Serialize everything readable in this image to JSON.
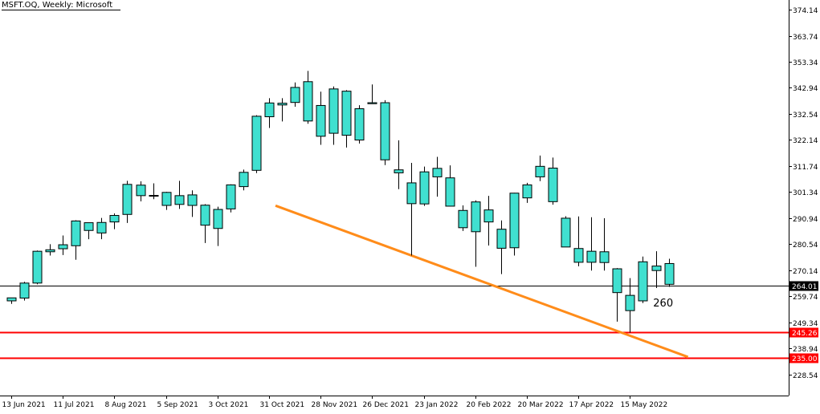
{
  "title": "MSFT.OQ, Weekly:  Microsoft",
  "colors": {
    "background": "#ffffff",
    "candle_fill": "#40e0d0",
    "candle_border": "#000000",
    "price_line": "#000000",
    "level_line": "#ff0000",
    "trend_line": "#ff8c1a",
    "axis": "#000000"
  },
  "chart_data": {
    "type": "candlestick",
    "symbol": "MSFT.OQ",
    "timeframe": "Weekly",
    "instrument": "Microsoft",
    "y_ticks": [
      "374.14",
      "363.74",
      "353.34",
      "342.94",
      "332.54",
      "322.14",
      "311.74",
      "301.34",
      "290.94",
      "280.54",
      "270.14",
      "259.74",
      "249.34",
      "238.94",
      "228.54"
    ],
    "ylim": [
      220.1,
      378.0
    ],
    "x_labels": [
      {
        "index": 0,
        "text": "13 Jun 2021"
      },
      {
        "index": 4,
        "text": "11 Jul 2021"
      },
      {
        "index": 8,
        "text": "8 Aug 2021"
      },
      {
        "index": 12,
        "text": "5 Sep 2021"
      },
      {
        "index": 16,
        "text": "3 Oct 2021"
      },
      {
        "index": 20,
        "text": "31 Oct 2021"
      },
      {
        "index": 24,
        "text": "28 Nov 2021"
      },
      {
        "index": 28,
        "text": "26 Dec 2021"
      },
      {
        "index": 32,
        "text": "23 Jan 2022"
      },
      {
        "index": 36,
        "text": "20 Feb 2022"
      },
      {
        "index": 40,
        "text": "20 Mar 2022"
      },
      {
        "index": 44,
        "text": "17 Apr 2022"
      },
      {
        "index": 48,
        "text": "15 May 2022"
      }
    ],
    "candles": [
      {
        "o": 257.9,
        "h": 259.0,
        "l": 256.7,
        "c": 259.1
      },
      {
        "o": 259.0,
        "h": 265.5,
        "l": 258.0,
        "c": 265.0
      },
      {
        "o": 265.0,
        "h": 278.0,
        "l": 264.5,
        "c": 277.7
      },
      {
        "o": 277.5,
        "h": 280.5,
        "l": 276.0,
        "c": 278.3
      },
      {
        "o": 278.7,
        "h": 284.0,
        "l": 276.2,
        "c": 280.3
      },
      {
        "o": 279.9,
        "h": 290.1,
        "l": 274.3,
        "c": 289.8
      },
      {
        "o": 286.0,
        "h": 289.0,
        "l": 282.5,
        "c": 289.1
      },
      {
        "o": 285.0,
        "h": 291.0,
        "l": 282.5,
        "c": 289.2
      },
      {
        "o": 289.4,
        "h": 292.8,
        "l": 286.5,
        "c": 292.0
      },
      {
        "o": 292.4,
        "h": 305.8,
        "l": 289.0,
        "c": 304.4
      },
      {
        "o": 299.9,
        "h": 305.6,
        "l": 297.6,
        "c": 304.1
      },
      {
        "o": 300.0,
        "h": 304.8,
        "l": 298.5,
        "c": 300.0
      },
      {
        "o": 301.2,
        "h": 301.4,
        "l": 294.2,
        "c": 296.0
      },
      {
        "o": 296.4,
        "h": 305.8,
        "l": 294.6,
        "c": 299.9
      },
      {
        "o": 300.2,
        "h": 302.0,
        "l": 291.4,
        "c": 296.0
      },
      {
        "o": 296.1,
        "h": 296.5,
        "l": 281.0,
        "c": 288.1
      },
      {
        "o": 286.8,
        "h": 295.5,
        "l": 279.8,
        "c": 294.4
      },
      {
        "o": 294.6,
        "h": 304.4,
        "l": 293.2,
        "c": 304.2
      },
      {
        "o": 303.5,
        "h": 310.3,
        "l": 302.0,
        "c": 309.2
      },
      {
        "o": 310.0,
        "h": 332.0,
        "l": 308.9,
        "c": 331.6
      },
      {
        "o": 331.4,
        "h": 338.8,
        "l": 326.9,
        "c": 336.9
      },
      {
        "o": 336.1,
        "h": 338.8,
        "l": 329.5,
        "c": 336.8
      },
      {
        "o": 337.1,
        "h": 345.1,
        "l": 335.4,
        "c": 343.1
      },
      {
        "o": 345.4,
        "h": 349.7,
        "l": 328.6,
        "c": 329.7
      },
      {
        "o": 335.9,
        "h": 341.4,
        "l": 320.2,
        "c": 323.6
      },
      {
        "o": 324.8,
        "h": 343.5,
        "l": 320.2,
        "c": 342.5
      },
      {
        "o": 341.6,
        "h": 342.0,
        "l": 319.1,
        "c": 324.0
      },
      {
        "o": 334.6,
        "h": 336.0,
        "l": 320.7,
        "c": 322.1
      },
      {
        "o": 336.6,
        "h": 344.3,
        "l": 336.5,
        "c": 337.0
      },
      {
        "o": 337.0,
        "h": 338.0,
        "l": 312.1,
        "c": 314.2
      },
      {
        "o": 310.2,
        "h": 322.0,
        "l": 302.5,
        "c": 309.0
      },
      {
        "o": 305.0,
        "h": 313.0,
        "l": 276.0,
        "c": 296.7
      },
      {
        "o": 296.6,
        "h": 311.5,
        "l": 295.8,
        "c": 309.4
      },
      {
        "o": 310.8,
        "h": 315.4,
        "l": 299.5,
        "c": 307.4
      },
      {
        "o": 307.0,
        "h": 312.0,
        "l": 295.6,
        "c": 295.7
      },
      {
        "o": 294.0,
        "h": 296.0,
        "l": 285.8,
        "c": 287.1
      },
      {
        "o": 297.4,
        "h": 298.0,
        "l": 271.5,
        "c": 285.5
      },
      {
        "o": 294.2,
        "h": 299.8,
        "l": 280.0,
        "c": 289.4
      },
      {
        "o": 286.5,
        "h": 290.0,
        "l": 268.6,
        "c": 278.9
      },
      {
        "o": 279.1,
        "h": 301.0,
        "l": 276.0,
        "c": 300.9
      },
      {
        "o": 299.0,
        "h": 305.0,
        "l": 297.0,
        "c": 304.2
      },
      {
        "o": 307.4,
        "h": 315.9,
        "l": 305.7,
        "c": 311.6
      },
      {
        "o": 310.9,
        "h": 315.1,
        "l": 296.3,
        "c": 297.5
      },
      {
        "o": 290.9,
        "h": 291.7,
        "l": 279.8,
        "c": 279.4
      },
      {
        "o": 278.8,
        "h": 291.6,
        "l": 271.7,
        "c": 273.3
      },
      {
        "o": 273.3,
        "h": 291.3,
        "l": 270.0,
        "c": 277.7
      },
      {
        "o": 277.5,
        "h": 290.9,
        "l": 270.0,
        "c": 273.2
      },
      {
        "o": 270.7,
        "h": 271.0,
        "l": 249.6,
        "c": 261.2
      },
      {
        "o": 254.0,
        "h": 267.0,
        "l": 245.2,
        "c": 260.1
      },
      {
        "o": 257.9,
        "h": 275.6,
        "l": 257.0,
        "c": 273.5
      },
      {
        "o": 270.0,
        "h": 277.7,
        "l": 263.0,
        "c": 271.8
      },
      {
        "o": 264.5,
        "h": 274.7,
        "l": 263.5,
        "c": 272.8
      }
    ],
    "current_price": {
      "value": 264.01,
      "label": "264.01"
    },
    "levels": [
      {
        "value": 245.26,
        "label": "245.26"
      },
      {
        "value": 235.0,
        "label": "235.00"
      }
    ],
    "trendline": {
      "start": {
        "index": 20.5,
        "value": 295.9
      },
      "end": {
        "index": 52.5,
        "value": 235.5
      }
    },
    "annotations": [
      {
        "text": "260",
        "index": 49.8,
        "value": 259.5
      }
    ],
    "grid": false
  }
}
